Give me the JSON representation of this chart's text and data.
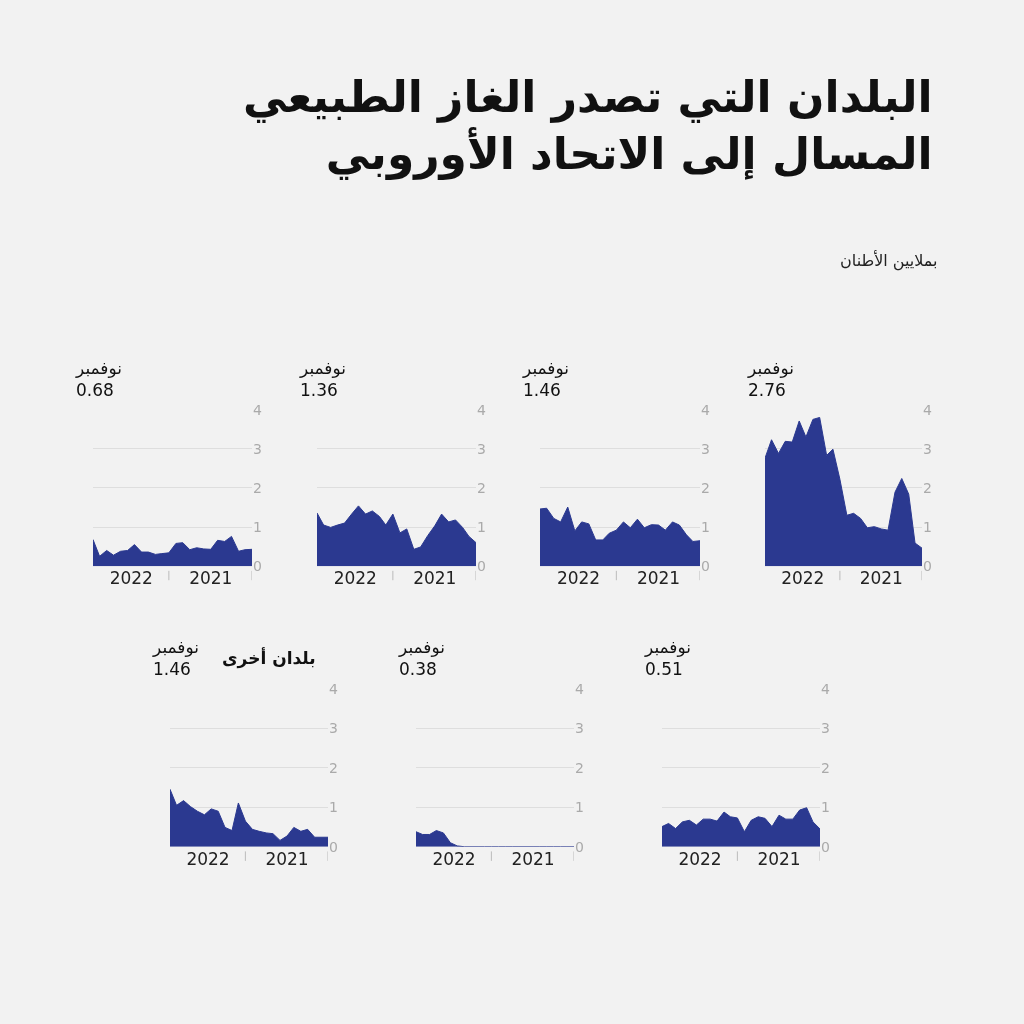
{
  "chart_data": [
    {
      "type": "area",
      "title": "البلدان التي تصدر الغاز الطبيعي\nالمسال إلى الاتحاد الأوروبي",
      "subtitle": "بملايين الأطنان",
      "x": [
        "2022-11-30",
        "2022-11-01",
        "2022-10-01",
        "2022-09-01",
        "2022-08-01",
        "2022-07-01",
        "2022-06-01",
        "2022-05-01",
        "2022-04-01",
        "2022-03-01",
        "2022-02-01",
        "2022-01-01",
        "2021-12-01",
        "2021-11-01",
        "2021-10-01",
        "2021-09-01",
        "2021-08-01",
        "2021-07-01",
        "2021-06-01",
        "2021-05-01",
        "2021-04-01",
        "2021-03-01",
        "2021-02-01",
        "2021-01-01"
      ],
      "series": [
        {
          "color": "#2b3990",
          "values": [
            2.76,
            3.23,
            2.88,
            3.19,
            3.17,
            3.71,
            3.3,
            3.75,
            3.8,
            2.83,
            2.99,
            2.22,
            1.3,
            1.35,
            1.22,
            0.98,
            1.01,
            0.95,
            0.92,
            1.89,
            2.24,
            1.84,
            0.59,
            0.46
          ]
        }
      ],
      "xlim": [
        "2022-11-30",
        "2021-01-01"
      ],
      "xticks": [
        {
          "value": "2022-06-15",
          "label": "2022"
        },
        {
          "value": "2022-01-01",
          "label": null
        },
        {
          "value": "2021-07-01",
          "label": "2021"
        },
        {
          "value": "2021-01-01",
          "label": null
        }
      ],
      "ylim": [
        0,
        4
      ],
      "yticks": [
        0,
        1,
        2,
        3,
        4
      ],
      "grid": "y",
      "annotations": [
        "نوفمبر\n2.76"
      ]
    },
    {
      "type": "area",
      "x": [
        "2022-11-30",
        "2022-11-01",
        "2022-10-01",
        "2022-09-01",
        "2022-08-01",
        "2022-07-01",
        "2022-06-01",
        "2022-05-01",
        "2022-04-01",
        "2022-03-01",
        "2022-02-01",
        "2022-01-01",
        "2021-12-01",
        "2021-11-01",
        "2021-10-01",
        "2021-09-01",
        "2021-08-01",
        "2021-07-01",
        "2021-06-01",
        "2021-05-01",
        "2021-04-01",
        "2021-03-01",
        "2021-02-01",
        "2021-01-01"
      ],
      "series": [
        {
          "color": "#2b3990",
          "values": [
            1.46,
            1.48,
            1.22,
            1.13,
            1.51,
            0.9,
            1.13,
            1.08,
            0.67,
            0.67,
            0.84,
            0.92,
            1.13,
            0.98,
            1.2,
            0.98,
            1.06,
            1.05,
            0.92,
            1.13,
            1.05,
            0.8,
            0.63,
            0.65
          ]
        }
      ],
      "xlim": [
        "2022-11-30",
        "2021-01-01"
      ],
      "xticks": [
        {
          "value": "2022-06-15",
          "label": "2022"
        },
        {
          "value": "2022-01-01",
          "label": null
        },
        {
          "value": "2021-07-01",
          "label": "2021"
        },
        {
          "value": "2021-01-01",
          "label": null
        }
      ],
      "ylim": [
        0,
        4
      ],
      "yticks": [
        0,
        1,
        2,
        3,
        4
      ],
      "grid": "y",
      "annotations": [
        "نوفمبر\n1.46"
      ]
    },
    {
      "type": "area",
      "x": [
        "2022-11-30",
        "2022-11-01",
        "2022-10-01",
        "2022-09-01",
        "2022-08-01",
        "2022-07-01",
        "2022-06-01",
        "2022-05-01",
        "2022-04-01",
        "2022-03-01",
        "2022-02-01",
        "2022-01-01",
        "2021-12-01",
        "2021-11-01",
        "2021-10-01",
        "2021-09-01",
        "2021-08-01",
        "2021-07-01",
        "2021-06-01",
        "2021-05-01",
        "2021-04-01",
        "2021-03-01",
        "2021-02-01",
        "2021-01-01"
      ],
      "series": [
        {
          "color": "#2b3990",
          "values": [
            1.36,
            1.05,
            0.99,
            1.05,
            1.1,
            1.33,
            1.54,
            1.33,
            1.41,
            1.27,
            1.05,
            1.33,
            0.85,
            0.95,
            0.43,
            0.49,
            0.78,
            1.03,
            1.33,
            1.13,
            1.18,
            0.99,
            0.76,
            0.6
          ]
        }
      ],
      "xlim": [
        "2022-11-30",
        "2021-01-01"
      ],
      "xticks": [
        {
          "value": "2022-06-15",
          "label": "2022"
        },
        {
          "value": "2022-01-01",
          "label": null
        },
        {
          "value": "2021-07-01",
          "label": "2021"
        },
        {
          "value": "2021-01-01",
          "label": null
        }
      ],
      "ylim": [
        0,
        4
      ],
      "yticks": [
        0,
        1,
        2,
        3,
        4
      ],
      "grid": "y",
      "annotations": [
        "نوفمبر\n1.36"
      ]
    },
    {
      "type": "area",
      "x": [
        "2022-11-30",
        "2022-11-01",
        "2022-10-01",
        "2022-09-01",
        "2022-08-01",
        "2022-07-01",
        "2022-06-01",
        "2022-05-01",
        "2022-04-01",
        "2022-03-01",
        "2022-02-01",
        "2022-01-01",
        "2021-12-01",
        "2021-11-01",
        "2021-10-01",
        "2021-09-01",
        "2021-08-01",
        "2021-07-01",
        "2021-06-01",
        "2021-05-01",
        "2021-04-01",
        "2021-03-01",
        "2021-02-01",
        "2021-01-01"
      ],
      "series": [
        {
          "color": "#2b3990",
          "values": [
            0.68,
            0.25,
            0.4,
            0.28,
            0.38,
            0.4,
            0.55,
            0.36,
            0.36,
            0.3,
            0.32,
            0.34,
            0.58,
            0.6,
            0.42,
            0.47,
            0.44,
            0.43,
            0.66,
            0.63,
            0.76,
            0.38,
            0.42,
            0.43
          ]
        }
      ],
      "xlim": [
        "2022-11-30",
        "2021-01-01"
      ],
      "xticks": [
        {
          "value": "2022-06-15",
          "label": "2022"
        },
        {
          "value": "2022-01-01",
          "label": null
        },
        {
          "value": "2021-07-01",
          "label": "2021"
        },
        {
          "value": "2021-01-01",
          "label": null
        }
      ],
      "ylim": [
        0,
        4
      ],
      "yticks": [
        0,
        1,
        2,
        3,
        4
      ],
      "grid": "y",
      "annotations": [
        "نوفمبر\n0.68"
      ]
    },
    {
      "type": "area",
      "x": [
        "2022-11-30",
        "2022-11-01",
        "2022-10-01",
        "2022-09-01",
        "2022-08-01",
        "2022-07-01",
        "2022-06-01",
        "2022-05-01",
        "2022-04-01",
        "2022-03-01",
        "2022-02-01",
        "2022-01-01",
        "2021-12-01",
        "2021-11-01",
        "2021-10-01",
        "2021-09-01",
        "2021-08-01",
        "2021-07-01",
        "2021-06-01",
        "2021-05-01",
        "2021-04-01",
        "2021-03-01",
        "2021-02-01",
        "2021-01-01"
      ],
      "series": [
        {
          "color": "#2b3990",
          "values": [
            0.51,
            0.59,
            0.46,
            0.63,
            0.67,
            0.55,
            0.7,
            0.7,
            0.65,
            0.88,
            0.76,
            0.73,
            0.38,
            0.67,
            0.76,
            0.72,
            0.51,
            0.8,
            0.7,
            0.7,
            0.93,
            0.99,
            0.63,
            0.45
          ]
        }
      ],
      "xlim": [
        "2022-11-30",
        "2021-01-01"
      ],
      "xticks": [
        {
          "value": "2022-06-15",
          "label": "2022"
        },
        {
          "value": "2022-01-01",
          "label": null
        },
        {
          "value": "2021-07-01",
          "label": "2021"
        },
        {
          "value": "2021-01-01",
          "label": null
        }
      ],
      "ylim": [
        0,
        4
      ],
      "yticks": [
        0,
        1,
        2,
        3,
        4
      ],
      "grid": "y",
      "annotations": [
        "نوفمبر\n0.51"
      ]
    },
    {
      "type": "area",
      "x": [
        "2022-11-30",
        "2022-11-01",
        "2022-10-01",
        "2022-09-01",
        "2022-08-01",
        "2022-07-01",
        "2022-06-01",
        "2022-05-01",
        "2022-04-01",
        "2022-03-01",
        "2022-02-01",
        "2022-01-01",
        "2021-12-01",
        "2021-11-01",
        "2021-10-01",
        "2021-09-01",
        "2021-08-01",
        "2021-07-01",
        "2021-06-01",
        "2021-05-01",
        "2021-04-01",
        "2021-03-01",
        "2021-02-01",
        "2021-01-01"
      ],
      "series": [
        {
          "color": "#2b3990",
          "values": [
            0.38,
            0.31,
            0.31,
            0.41,
            0.35,
            0.1,
            0.02,
            0,
            0,
            0,
            0,
            0,
            0,
            0,
            0,
            0,
            0,
            0,
            0,
            0,
            0,
            0,
            0,
            0
          ]
        }
      ],
      "xlim": [
        "2022-11-30",
        "2021-01-01"
      ],
      "xticks": [
        {
          "value": "2022-06-15",
          "label": "2022"
        },
        {
          "value": "2022-01-01",
          "label": null
        },
        {
          "value": "2021-07-01",
          "label": "2021"
        },
        {
          "value": "2021-01-01",
          "label": null
        }
      ],
      "ylim": [
        0,
        4
      ],
      "yticks": [
        0,
        1,
        2,
        3,
        4
      ],
      "grid": "y",
      "annotations": [
        "نوفمبر\n0.38"
      ]
    },
    {
      "type": "area",
      "title": "بلدان أخرى",
      "x": [
        "2022-11-30",
        "2022-11-01",
        "2022-10-01",
        "2022-09-01",
        "2022-08-01",
        "2022-07-01",
        "2022-06-01",
        "2022-05-01",
        "2022-04-01",
        "2022-03-01",
        "2022-02-01",
        "2022-01-01",
        "2021-12-01",
        "2021-11-01",
        "2021-10-01",
        "2021-09-01",
        "2021-08-01",
        "2021-07-01",
        "2021-06-01",
        "2021-05-01",
        "2021-04-01",
        "2021-03-01",
        "2021-02-01",
        "2021-01-01"
      ],
      "series": [
        {
          "color": "#2b3990",
          "values": [
            1.46,
            1.05,
            1.17,
            1.02,
            0.9,
            0.81,
            0.96,
            0.9,
            0.49,
            0.41,
            1.11,
            0.65,
            0.44,
            0.39,
            0.35,
            0.33,
            0.16,
            0.27,
            0.49,
            0.39,
            0.44,
            0.24,
            0.24,
            0.24
          ]
        }
      ],
      "xlim": [
        "2022-11-30",
        "2021-01-01"
      ],
      "xticks": [
        {
          "value": "2022-06-15",
          "label": "2022"
        },
        {
          "value": "2022-01-01",
          "label": null
        },
        {
          "value": "2021-07-01",
          "label": "2021"
        },
        {
          "value": "2021-01-01",
          "label": null
        }
      ],
      "ylim": [
        0,
        4
      ],
      "yticks": [
        0,
        1,
        2,
        3,
        4
      ],
      "grid": "y",
      "annotations": [
        "نوفمبر\n1.46"
      ]
    }
  ]
}
